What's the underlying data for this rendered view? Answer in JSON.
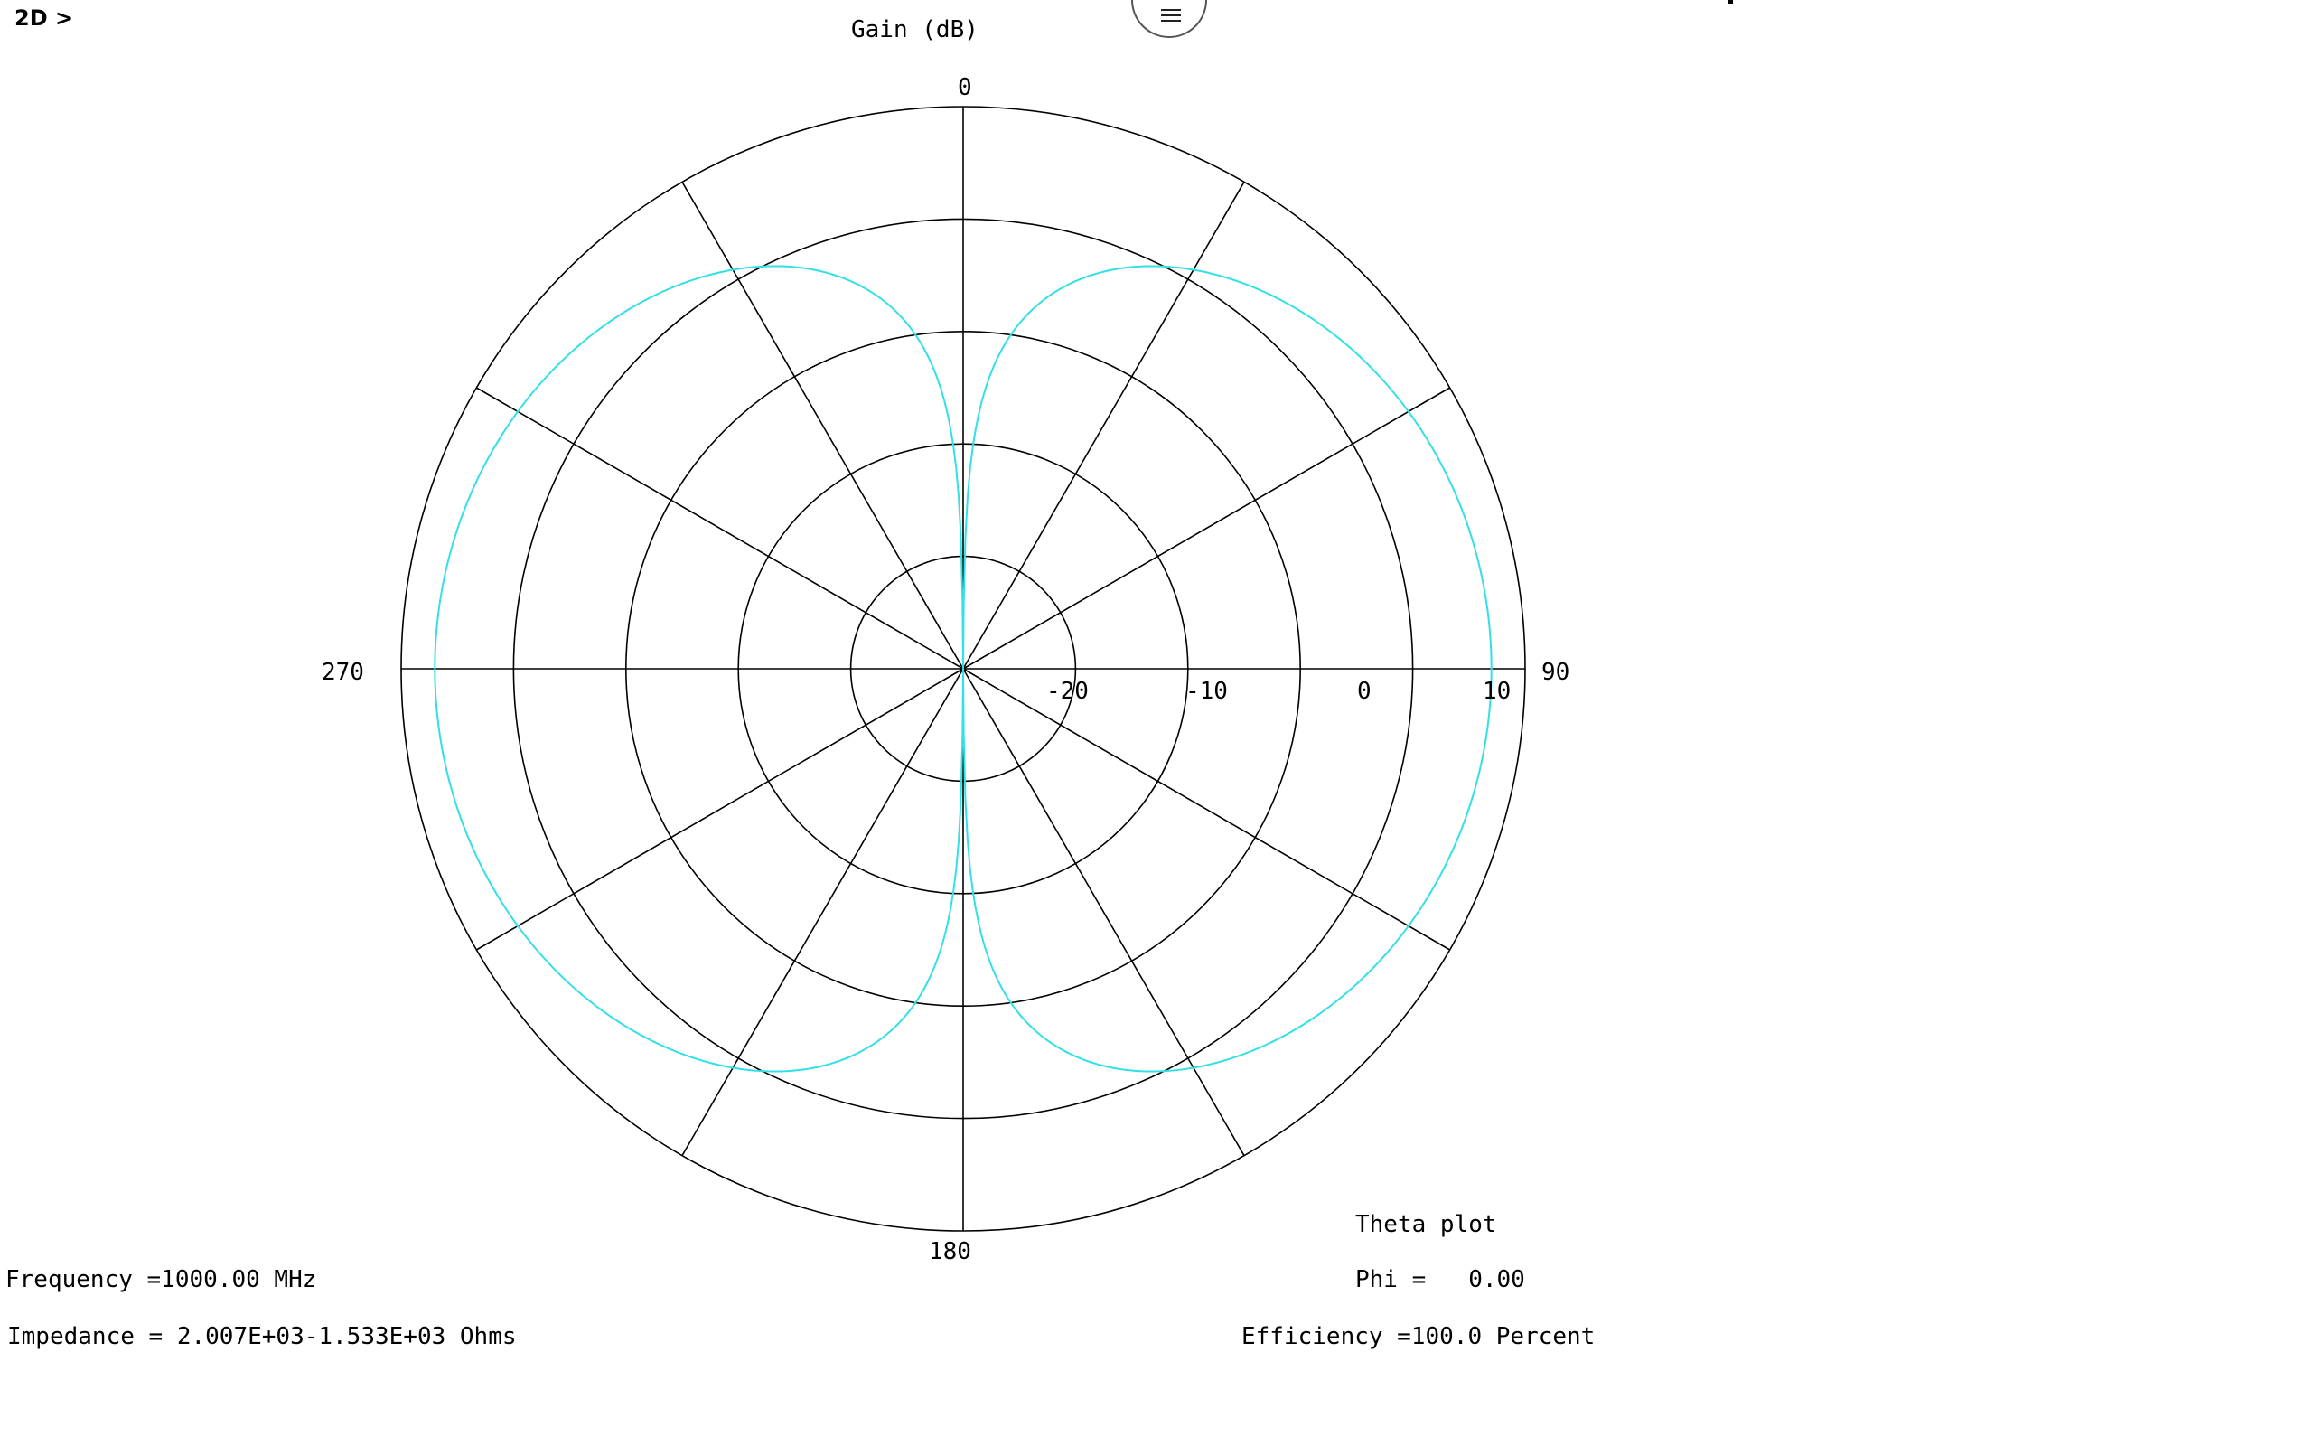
{
  "toolbar": {
    "breadcrumb": "2D >",
    "menu_icon": "hamburger-menu-icon"
  },
  "plot": {
    "title": "Gain (dB)",
    "plot_type_label": "Theta plot",
    "phi_label": "Phi =   0.00"
  },
  "info": {
    "frequency": "Frequency =1000.00 MHz",
    "impedance": "Impedance = 2.007E+03-1.533E+03 Ohms",
    "efficiency": "Efficiency =100.0 Percent"
  },
  "colors": {
    "pattern": "#33e0e6",
    "grid": "#000000"
  },
  "chart_data": {
    "type": "polar",
    "title": "Gain (dB)",
    "angle_labels": [
      {
        "angle": 0,
        "text": "0"
      },
      {
        "angle": 90,
        "text": "90"
      },
      {
        "angle": 180,
        "text": "180"
      },
      {
        "angle": 270,
        "text": "270"
      }
    ],
    "spoke_angles_deg": [
      0,
      30,
      60,
      90,
      120,
      150,
      180,
      210,
      240,
      270,
      300,
      330
    ],
    "radial_rings_db": [
      -20,
      -10,
      0,
      10,
      20
    ],
    "radial_labels": [
      {
        "db": -20,
        "text": "-20"
      },
      {
        "db": -10,
        "text": "-10"
      },
      {
        "db": 0,
        "text": "0"
      },
      {
        "db": 10,
        "text": "10"
      }
    ],
    "radial_range_db": [
      -30,
      20
    ],
    "series": [
      {
        "pattern": "sin_theta_dipole",
        "peak_gain_db": 17,
        "angles_deg": [
          5,
          10,
          20,
          30,
          45,
          60,
          75,
          90,
          105,
          120,
          135,
          150,
          160,
          170,
          175,
          185,
          190,
          200,
          210,
          225,
          240,
          255,
          270,
          285,
          300,
          315,
          330,
          340,
          350,
          355
        ],
        "gain_db": [
          -4.2,
          1.8,
          7.7,
          11.0,
          14.0,
          15.8,
          16.7,
          17.0,
          16.7,
          15.8,
          14.0,
          11.0,
          7.7,
          1.8,
          -4.2,
          -4.2,
          1.8,
          7.7,
          11.0,
          14.0,
          15.8,
          16.7,
          17.0,
          16.7,
          15.8,
          14.0,
          11.0,
          7.7,
          1.8,
          -4.2
        ]
      }
    ]
  }
}
